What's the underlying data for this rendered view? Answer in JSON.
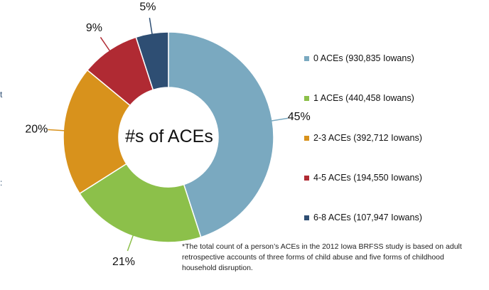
{
  "chart_data": {
    "type": "pie",
    "donut": true,
    "center_label": "#s of ACEs",
    "categories": [
      "0 ACEs (930,835 Iowans)",
      "1 ACEs (440,458 Iowans)",
      "2-3 ACEs (392,712 Iowans)",
      "4-5 ACEs (194,550 Iowans)",
      "6-8 ACEs (107,947 Iowans)"
    ],
    "values": [
      45,
      21,
      20,
      9,
      5
    ],
    "value_labels": [
      "45%",
      "21%",
      "20%",
      "9%",
      "5%"
    ],
    "colors": [
      "#7aa9c0",
      "#8cc04a",
      "#d8921c",
      "#b02a33",
      "#2e4e73"
    ],
    "legend_position": "right"
  },
  "footnote": "*The total count of a person’s ACEs in the 2012 Iowa BRFSS study is based on adult retrospective accounts of three forms of child abuse and five forms of childhood household disruption.",
  "edge_marks": [
    "t",
    ":"
  ]
}
